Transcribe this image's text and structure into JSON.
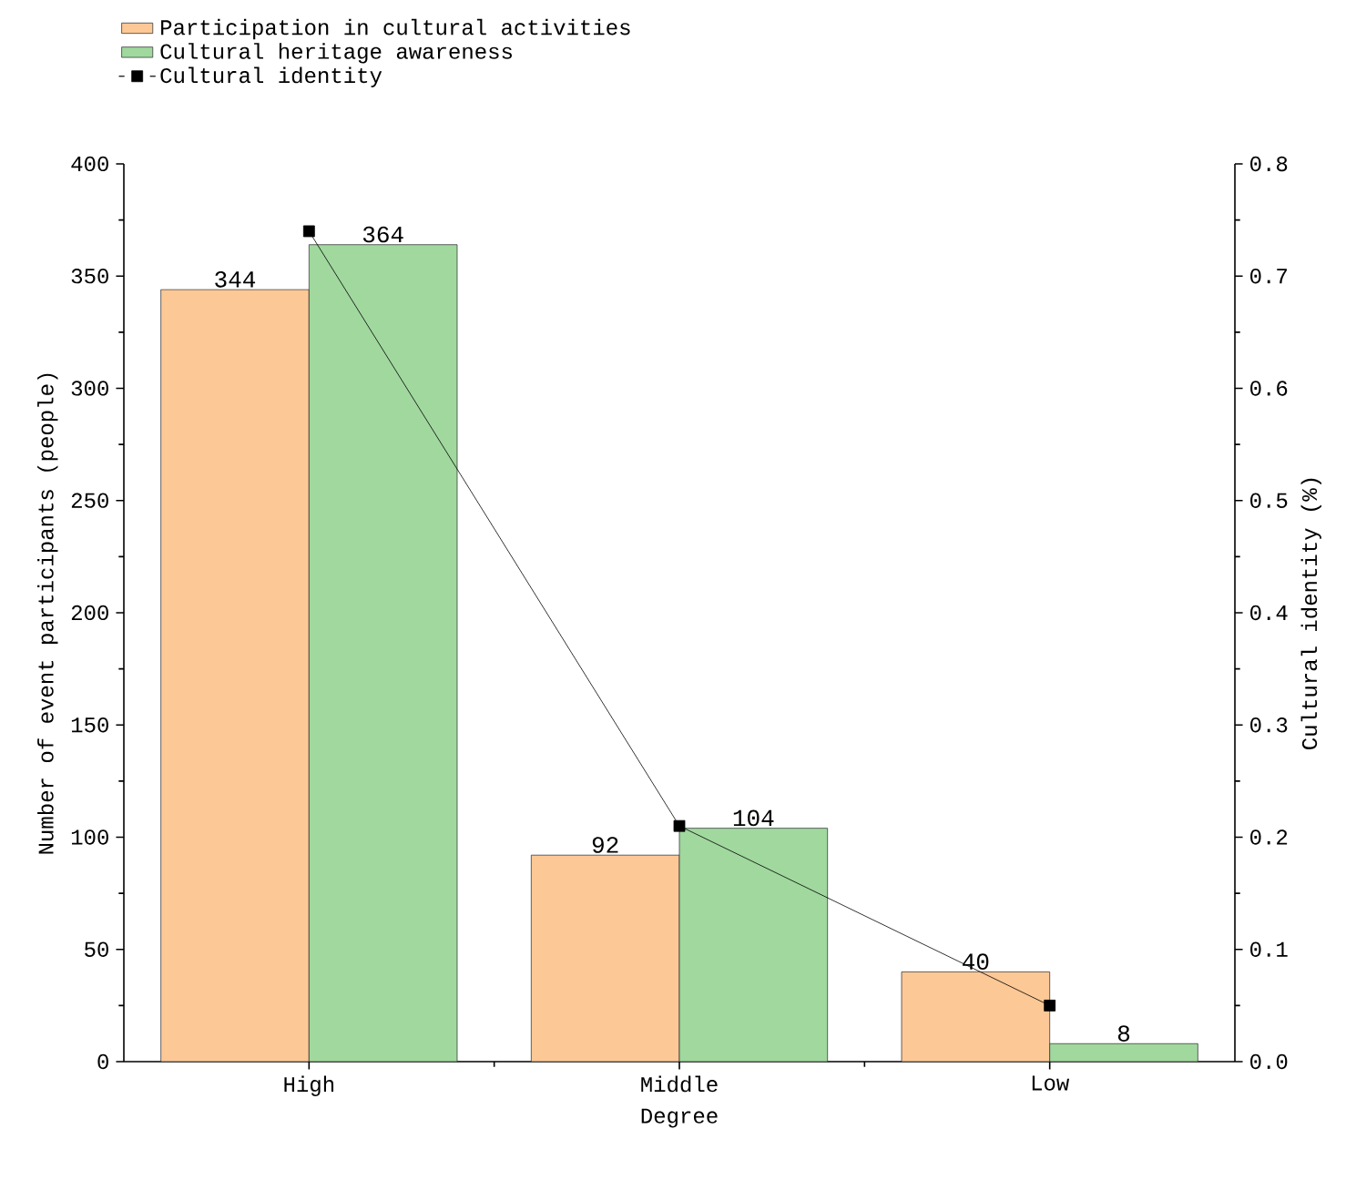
{
  "chart_data": {
    "type": "bar",
    "categories": [
      "High",
      "Middle",
      "Low"
    ],
    "xlabel": "Degree",
    "ylabel": "Number of event participants (people)",
    "y2label": "Cultural identity (%)",
    "series": [
      {
        "name": "Participation in cultural activities",
        "color": "#fcc896",
        "values": [
          344,
          92,
          40
        ],
        "value_labels": [
          "344",
          "92",
          "40"
        ]
      },
      {
        "name": "Cultural heritage awareness",
        "color": "#a0d89e",
        "values": [
          364,
          104,
          8
        ],
        "value_labels": [
          "364",
          "104",
          "8"
        ]
      },
      {
        "name": "Cultural identity",
        "type": "line",
        "axis": "y2",
        "color": "#000000",
        "marker": "square",
        "line_style": "solid",
        "values": [
          0.74,
          0.21,
          0.05
        ]
      }
    ],
    "ylim": [
      0,
      400
    ],
    "yticks": [
      0,
      50,
      100,
      150,
      200,
      250,
      300,
      350,
      400
    ],
    "y2lim": [
      0,
      0.8
    ],
    "y2ticks": [
      {
        "value": 0,
        "label": "0.0"
      },
      0.1,
      0.2,
      0.3,
      0.4,
      0.5,
      0.6,
      0.7,
      0.8
    ],
    "legend": "top left"
  }
}
